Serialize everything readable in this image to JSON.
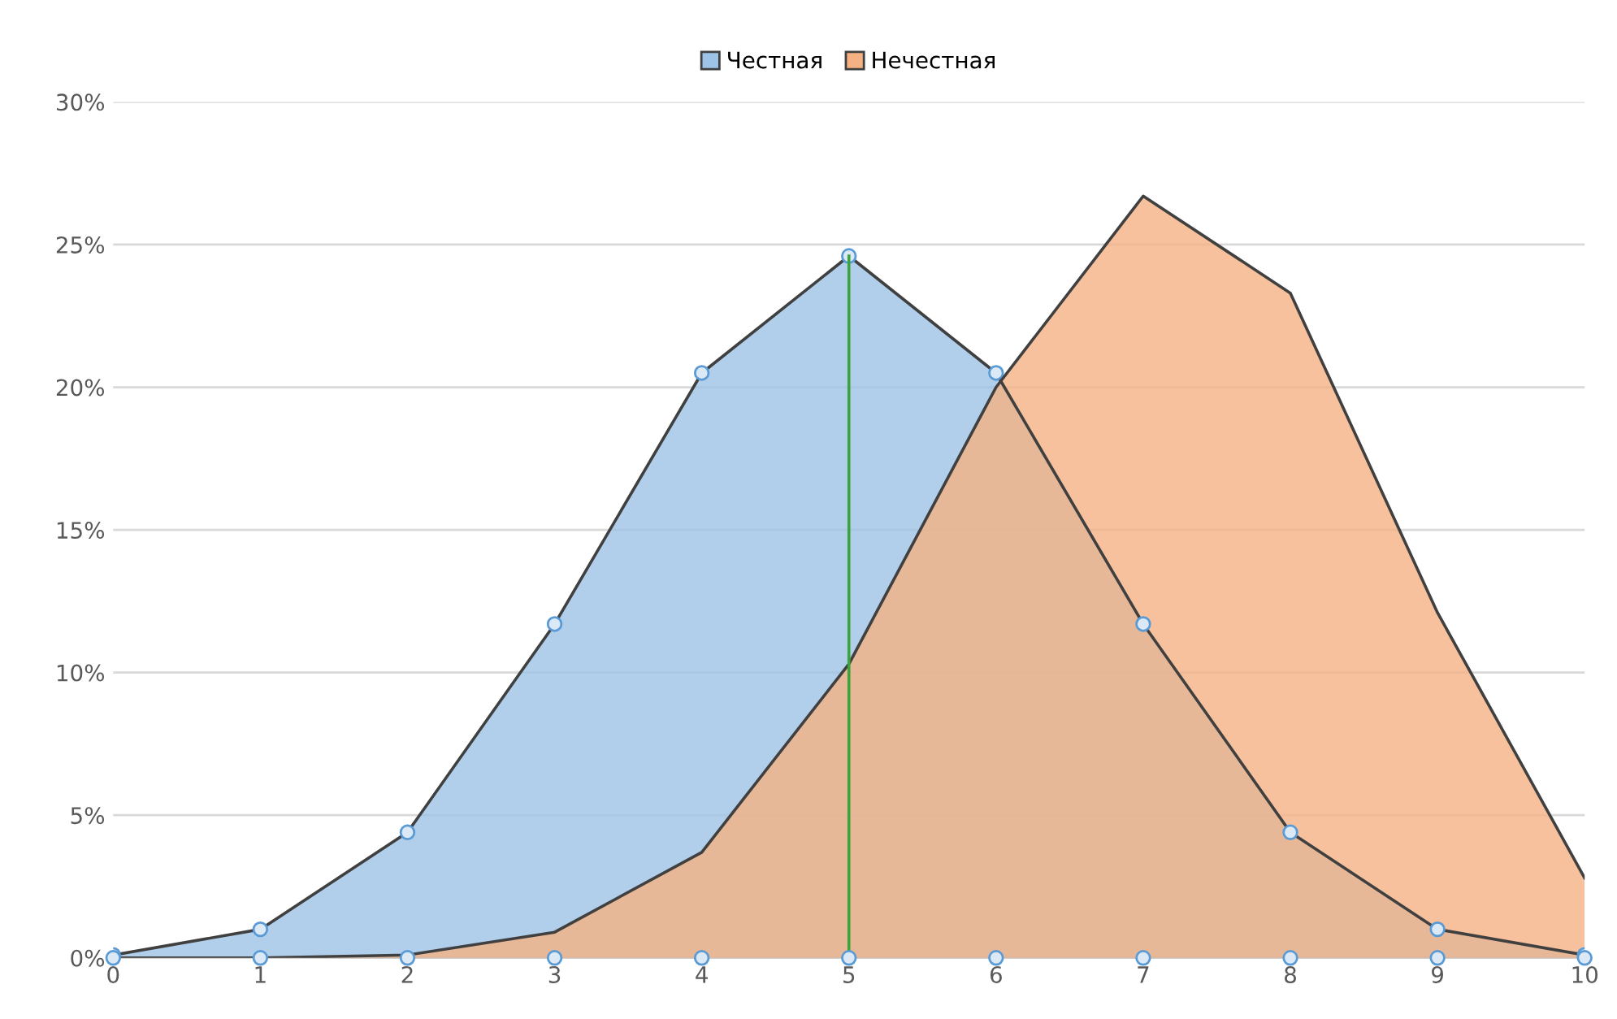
{
  "chart_data": {
    "type": "area",
    "x": [
      0,
      1,
      2,
      3,
      4,
      5,
      6,
      7,
      8,
      9,
      10
    ],
    "series": [
      {
        "name": "Честная",
        "color": "#9dc3e6",
        "values": [
          0.1,
          1.0,
          4.4,
          11.7,
          20.5,
          24.6,
          20.5,
          11.7,
          4.4,
          1.0,
          0.1
        ],
        "marker": "circle"
      },
      {
        "name": "Нечестная",
        "color": "#f4b183",
        "values": [
          0.0,
          0.0,
          0.1,
          0.9,
          3.7,
          10.3,
          20.0,
          26.7,
          23.3,
          12.1,
          2.8
        ]
      },
      {
        "type": "scatter",
        "color": "#5b9bd5",
        "values": [
          0,
          0,
          0,
          0,
          0,
          0,
          0,
          0,
          0,
          0,
          0
        ],
        "marker": "circle"
      },
      {
        "type": "line",
        "color": "#3aa53a",
        "x": [
          5,
          5
        ],
        "values": [
          0,
          24.6
        ]
      }
    ],
    "xlim": [
      0,
      10
    ],
    "xticks": [
      0,
      1,
      2,
      3,
      4,
      5,
      6,
      7,
      8,
      9,
      10
    ],
    "ylim": [
      0,
      30
    ],
    "yticks": [
      {
        "value": 0,
        "label": "0%"
      },
      {
        "value": 5,
        "label": "5%"
      },
      {
        "value": 10,
        "label": "10%"
      },
      {
        "value": 15,
        "label": "15%"
      },
      {
        "value": 20,
        "label": "20%"
      },
      {
        "value": 25,
        "label": "25%"
      },
      {
        "value": 30,
        "label": "30%"
      }
    ],
    "grid": "y",
    "legend": "top"
  }
}
